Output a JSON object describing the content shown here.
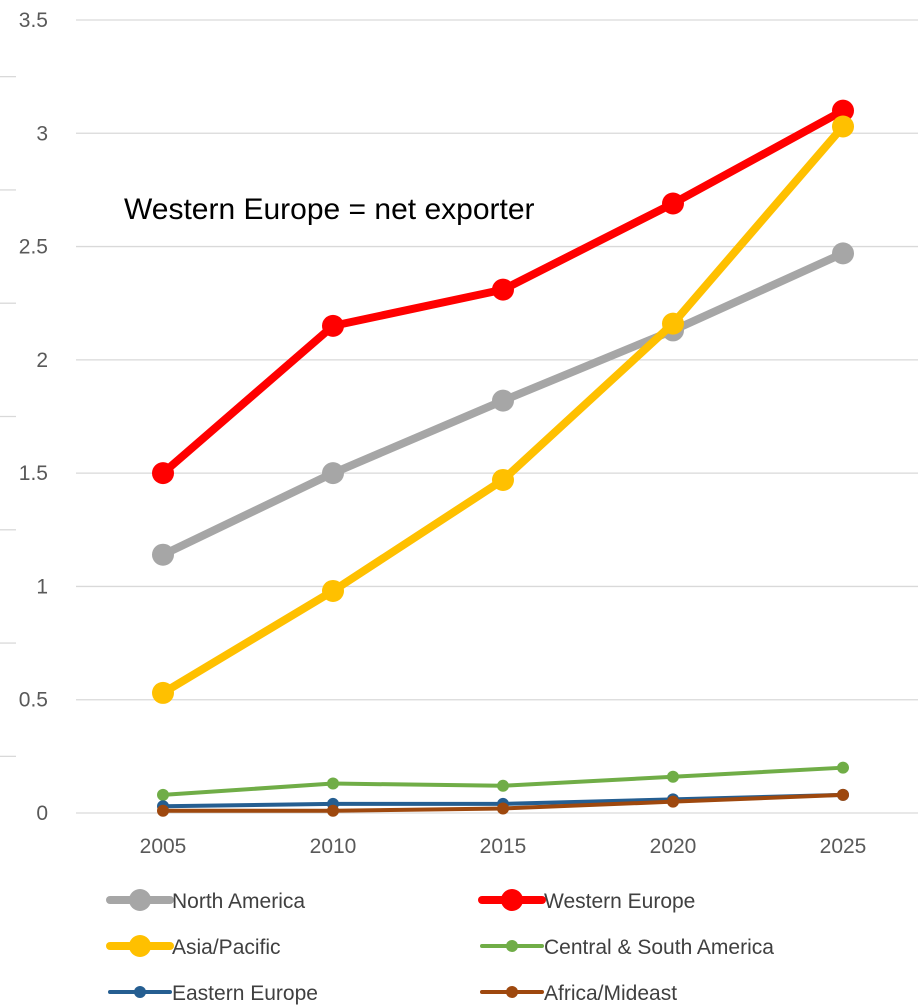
{
  "chart_data": {
    "type": "line",
    "title": "",
    "xlabel": "",
    "ylabel": "",
    "x": [
      "2005",
      "2010",
      "2015",
      "2020",
      "2025"
    ],
    "ylim": [
      0,
      3.5
    ],
    "yticks": [
      "0",
      "0.5",
      "1",
      "1.5",
      "2",
      "2.5",
      "3",
      "3.5"
    ],
    "grid": true,
    "legend_position": "bottom",
    "annotation": "Western Europe = net exporter",
    "series": [
      {
        "name": "North America",
        "color": "#A6A6A6",
        "weight": "thick",
        "values": [
          1.14,
          1.5,
          1.82,
          2.13,
          2.47
        ]
      },
      {
        "name": "Western Europe",
        "color": "#FF0000",
        "weight": "thick",
        "values": [
          1.5,
          2.15,
          2.31,
          2.69,
          3.1
        ]
      },
      {
        "name": "Asia/Pacific",
        "color": "#FFC000",
        "weight": "thick",
        "values": [
          0.53,
          0.98,
          1.47,
          2.16,
          3.03
        ]
      },
      {
        "name": "Central & South America",
        "color": "#70AD47",
        "weight": "thin",
        "values": [
          0.08,
          0.13,
          0.12,
          0.16,
          0.2
        ]
      },
      {
        "name": "Eastern Europe",
        "color": "#255E91",
        "weight": "thin",
        "values": [
          0.03,
          0.04,
          0.04,
          0.06,
          0.08
        ]
      },
      {
        "name": "Africa/Mideast",
        "color": "#9E480E",
        "weight": "thin",
        "values": [
          0.01,
          0.01,
          0.02,
          0.05,
          0.08
        ]
      }
    ]
  }
}
